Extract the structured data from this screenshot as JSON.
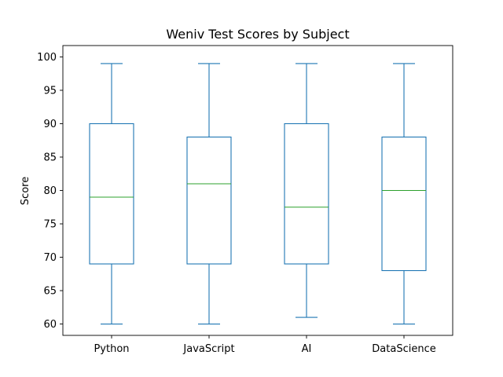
{
  "chart_data": {
    "type": "box",
    "title": "Weniv Test Scores by Subject",
    "xlabel": "",
    "ylabel": "Score",
    "ylim": [
      58.3,
      101.7
    ],
    "yticks": [
      60,
      65,
      70,
      75,
      80,
      85,
      90,
      95,
      100
    ],
    "grid": false,
    "categories": [
      "Python",
      "JavaScript",
      "AI",
      "DataScience"
    ],
    "boxes": [
      {
        "min": 60,
        "q1": 69,
        "median": 79,
        "q3": 90,
        "max": 99
      },
      {
        "min": 60,
        "q1": 69,
        "median": 81,
        "q3": 88,
        "max": 99
      },
      {
        "min": 61,
        "q1": 69,
        "median": 77.5,
        "q3": 90,
        "max": 99
      },
      {
        "min": 60,
        "q1": 68,
        "median": 80,
        "q3": 88,
        "max": 99
      }
    ],
    "colors": {
      "box": "#1f77b4",
      "median": "#2ca02c"
    }
  }
}
